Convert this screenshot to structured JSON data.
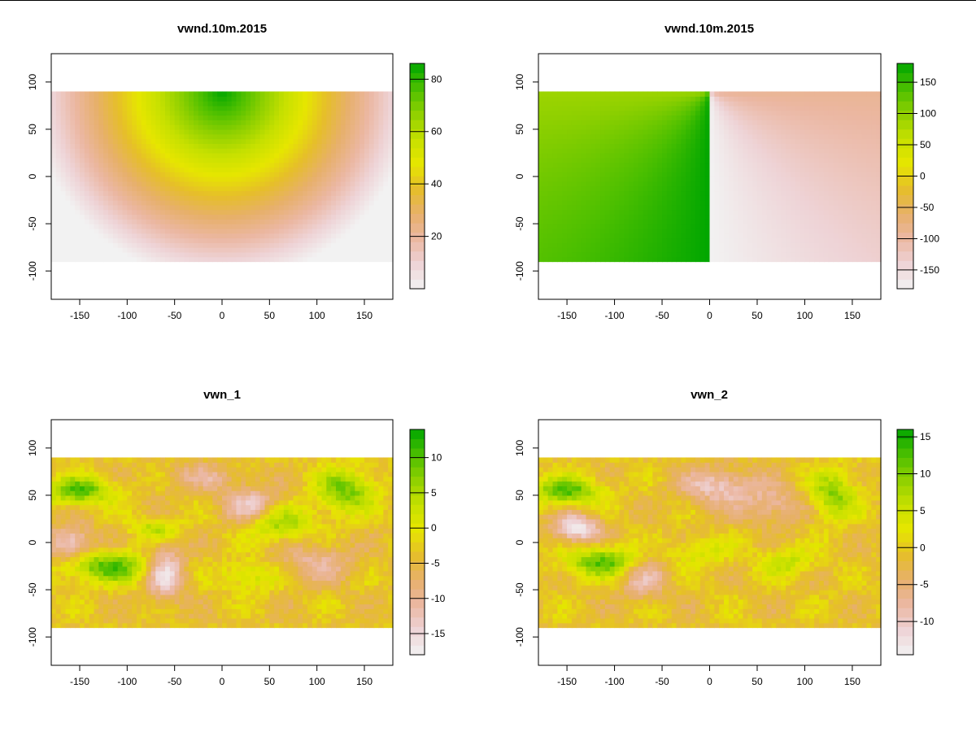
{
  "chart_data": [
    {
      "type": "heatmap",
      "title": "vwnd.10m.2015",
      "xlabel": "",
      "ylabel": "",
      "xlim": [
        -180,
        180
      ],
      "ylim": [
        -130,
        130
      ],
      "xticks": [
        -150,
        -100,
        -50,
        0,
        50,
        100,
        150
      ],
      "yticks": [
        -100,
        -50,
        0,
        50,
        100
      ],
      "data_extent": {
        "x": [
          -180,
          180
        ],
        "y": [
          -90,
          90
        ]
      },
      "field": "radial distance from (0, 90)",
      "legend": {
        "position": "right",
        "range": [
          0,
          86
        ],
        "ticks": [
          20,
          40,
          60,
          80
        ]
      },
      "grid": false
    },
    {
      "type": "heatmap",
      "title": "vwnd.10m.2015",
      "xlabel": "",
      "ylabel": "",
      "xlim": [
        -180,
        180
      ],
      "ylim": [
        -130,
        130
      ],
      "xticks": [
        -150,
        -100,
        -50,
        0,
        50,
        100,
        150
      ],
      "yticks": [
        -100,
        -50,
        0,
        50,
        100
      ],
      "data_extent": {
        "x": [
          -180,
          180
        ],
        "y": [
          -90,
          90
        ]
      },
      "field": "angle around (0, 90)",
      "legend": {
        "position": "right",
        "range": [
          -180,
          180
        ],
        "ticks": [
          -150,
          -100,
          -50,
          0,
          50,
          100,
          150
        ]
      },
      "grid": false
    },
    {
      "type": "heatmap",
      "title": "vwn_1",
      "xlabel": "",
      "ylabel": "",
      "xlim": [
        -180,
        180
      ],
      "ylim": [
        -130,
        130
      ],
      "xticks": [
        -150,
        -100,
        -50,
        0,
        50,
        100,
        150
      ],
      "yticks": [
        -100,
        -50,
        0,
        50,
        100
      ],
      "data_extent": {
        "x": [
          -180,
          180
        ],
        "y": [
          -90,
          90
        ]
      },
      "field": "wind",
      "legend": {
        "position": "right",
        "range": [
          -18,
          14
        ],
        "ticks": [
          -15,
          -10,
          -5,
          0,
          5,
          10
        ]
      },
      "grid": false
    },
    {
      "type": "heatmap",
      "title": "vwn_2",
      "xlabel": "",
      "ylabel": "",
      "xlim": [
        -180,
        180
      ],
      "ylim": [
        -130,
        130
      ],
      "xticks": [
        -150,
        -100,
        -50,
        0,
        50,
        100,
        150
      ],
      "yticks": [
        -100,
        -50,
        0,
        50,
        100
      ],
      "data_extent": {
        "x": [
          -180,
          180
        ],
        "y": [
          -90,
          90
        ]
      },
      "field": "wind",
      "legend": {
        "position": "right",
        "range": [
          -14.5,
          16
        ],
        "ticks": [
          -10,
          -5,
          0,
          5,
          10,
          15
        ]
      },
      "grid": false
    }
  ],
  "colors": {
    "ramp": [
      "#f2f2f2",
      "#eed3d6",
      "#ebb7a2",
      "#e7b06b",
      "#e6be2a",
      "#e6e600",
      "#c6e000",
      "#8fd000",
      "#4bbf00",
      "#00a600"
    ],
    "frame": "#000000"
  }
}
